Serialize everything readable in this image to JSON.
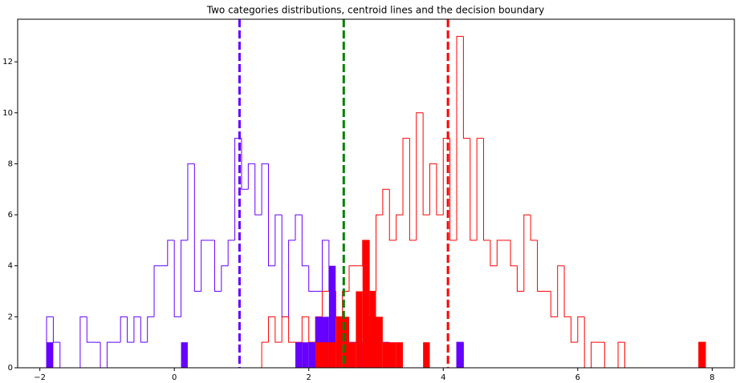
{
  "chart_data": {
    "type": "histogram",
    "title": "Two categories distributions, centroid lines and the decision boundary",
    "bins": [
      -1.9,
      -1.8,
      -1.7,
      -1.6,
      -1.5,
      -1.4,
      -1.3,
      -1.2,
      -1.1,
      -1.0,
      -0.9,
      -0.8,
      -0.7,
      -0.6,
      -0.5,
      -0.4,
      -0.3,
      -0.2,
      -0.1,
      0.0,
      0.1,
      0.2,
      0.3,
      0.4,
      0.5,
      0.6,
      0.7,
      0.8,
      0.9,
      1.0,
      1.1,
      1.2,
      1.3,
      1.4,
      1.5,
      1.6,
      1.7,
      1.8,
      1.9,
      2.0,
      2.1,
      2.2,
      2.3,
      2.4,
      2.5,
      2.6,
      2.7,
      2.8,
      2.9,
      3.0,
      3.1,
      3.2,
      3.3,
      3.4,
      3.5,
      3.6,
      3.7,
      3.8,
      3.9,
      4.0,
      4.1,
      4.2,
      4.3,
      4.4,
      4.5,
      4.6,
      4.7,
      4.8,
      4.9,
      5.0,
      5.1,
      5.2,
      5.3,
      5.4,
      5.5,
      5.6,
      5.7,
      5.8,
      5.9,
      6.0,
      6.1,
      6.2,
      6.3,
      6.4,
      6.5,
      6.6,
      6.7,
      6.8,
      6.9,
      7.0,
      7.1,
      7.2,
      7.3,
      7.4,
      7.5,
      7.6,
      7.7,
      7.8,
      7.9
    ],
    "series": [
      {
        "color": "#6600ff",
        "histtype": "step",
        "values": [
          2,
          1,
          0,
          0,
          0,
          2,
          1,
          1,
          0,
          1,
          1,
          2,
          1,
          2,
          1,
          2,
          4,
          4,
          5,
          2,
          5,
          8,
          3,
          5,
          5,
          3,
          4,
          5,
          9,
          7,
          8,
          6,
          8,
          4,
          6,
          2,
          5,
          6,
          4,
          3,
          3,
          5,
          3,
          2,
          1,
          1,
          1,
          0,
          2,
          1,
          1,
          0,
          0,
          0,
          0,
          0,
          0,
          0,
          0,
          0,
          0,
          1,
          0,
          0,
          0,
          0,
          0,
          0,
          0,
          0,
          0,
          0,
          0,
          0,
          0,
          0,
          0,
          0,
          0,
          0,
          0,
          0,
          0,
          0,
          0,
          0,
          0,
          0,
          0,
          0,
          0,
          0,
          0,
          0,
          0,
          0,
          0,
          0
        ]
      },
      {
        "color": "#ff0000",
        "histtype": "step",
        "values": [
          0,
          0,
          0,
          0,
          0,
          0,
          0,
          0,
          0,
          0,
          0,
          0,
          0,
          0,
          0,
          0,
          0,
          0,
          0,
          0,
          0,
          0,
          0,
          0,
          0,
          0,
          0,
          0,
          0,
          0,
          0,
          0,
          1,
          2,
          1,
          2,
          1,
          1,
          2,
          1,
          2,
          3,
          3,
          2,
          3,
          4,
          4,
          5,
          3,
          6,
          7,
          5,
          6,
          9,
          5,
          10,
          6,
          8,
          6,
          9,
          5,
          13,
          9,
          5,
          9,
          5,
          4,
          5,
          5,
          4,
          3,
          6,
          5,
          3,
          3,
          2,
          4,
          2,
          1,
          2,
          0,
          1,
          1,
          0,
          0,
          1,
          0,
          0,
          0,
          0,
          0,
          0,
          0,
          0,
          0,
          0,
          0,
          1
        ]
      },
      {
        "color": "#6600ff",
        "histtype": "bar",
        "values": [
          1,
          0,
          0,
          0,
          0,
          0,
          0,
          0,
          0,
          0,
          0,
          0,
          0,
          0,
          0,
          0,
          0,
          0,
          0,
          0,
          1,
          0,
          0,
          0,
          0,
          0,
          0,
          0,
          0,
          0,
          0,
          0,
          0,
          0,
          0,
          0,
          0,
          1,
          1,
          1,
          2,
          2,
          4,
          0,
          0,
          0,
          0,
          0,
          0,
          0,
          0,
          0,
          0,
          0,
          0,
          0,
          0,
          0,
          0,
          0,
          0,
          1,
          0,
          0,
          0,
          0,
          0,
          0,
          0,
          0,
          0,
          0,
          0,
          0,
          0,
          0,
          0,
          0,
          0,
          0,
          0,
          0,
          0,
          0,
          0,
          0,
          0,
          0,
          0,
          0,
          0,
          0,
          0,
          0,
          0,
          0,
          0,
          0
        ]
      },
      {
        "color": "#ff0000",
        "histtype": "bar",
        "values": [
          0,
          0,
          0,
          0,
          0,
          0,
          0,
          0,
          0,
          0,
          0,
          0,
          0,
          0,
          0,
          0,
          0,
          0,
          0,
          0,
          0,
          0,
          0,
          0,
          0,
          0,
          0,
          0,
          0,
          0,
          0,
          0,
          0,
          0,
          0,
          0,
          0,
          0,
          0,
          0,
          1,
          1,
          1,
          2,
          2,
          1,
          3,
          5,
          3,
          2,
          1,
          1,
          1,
          0,
          0,
          0,
          1,
          0,
          0,
          0,
          0,
          0,
          0,
          0,
          0,
          0,
          0,
          0,
          0,
          0,
          0,
          0,
          0,
          0,
          0,
          0,
          0,
          0,
          0,
          0,
          0,
          0,
          0,
          0,
          0,
          0,
          0,
          0,
          0,
          0,
          0,
          0,
          0,
          0,
          0,
          0,
          0,
          1
        ]
      }
    ],
    "vlines": [
      {
        "x": 0.97,
        "color": "#6600ff"
      },
      {
        "x": 2.52,
        "color": "#008000"
      },
      {
        "x": 4.07,
        "color": "#ff0000"
      }
    ],
    "xlim": [
      -2.33,
      8.33
    ],
    "ylim": [
      0,
      13.67
    ],
    "xticks": [
      {
        "value": -2,
        "label": "−2"
      },
      0,
      2,
      4,
      6,
      8
    ],
    "yticks": [
      0,
      2,
      4,
      6,
      8,
      10,
      12
    ]
  }
}
